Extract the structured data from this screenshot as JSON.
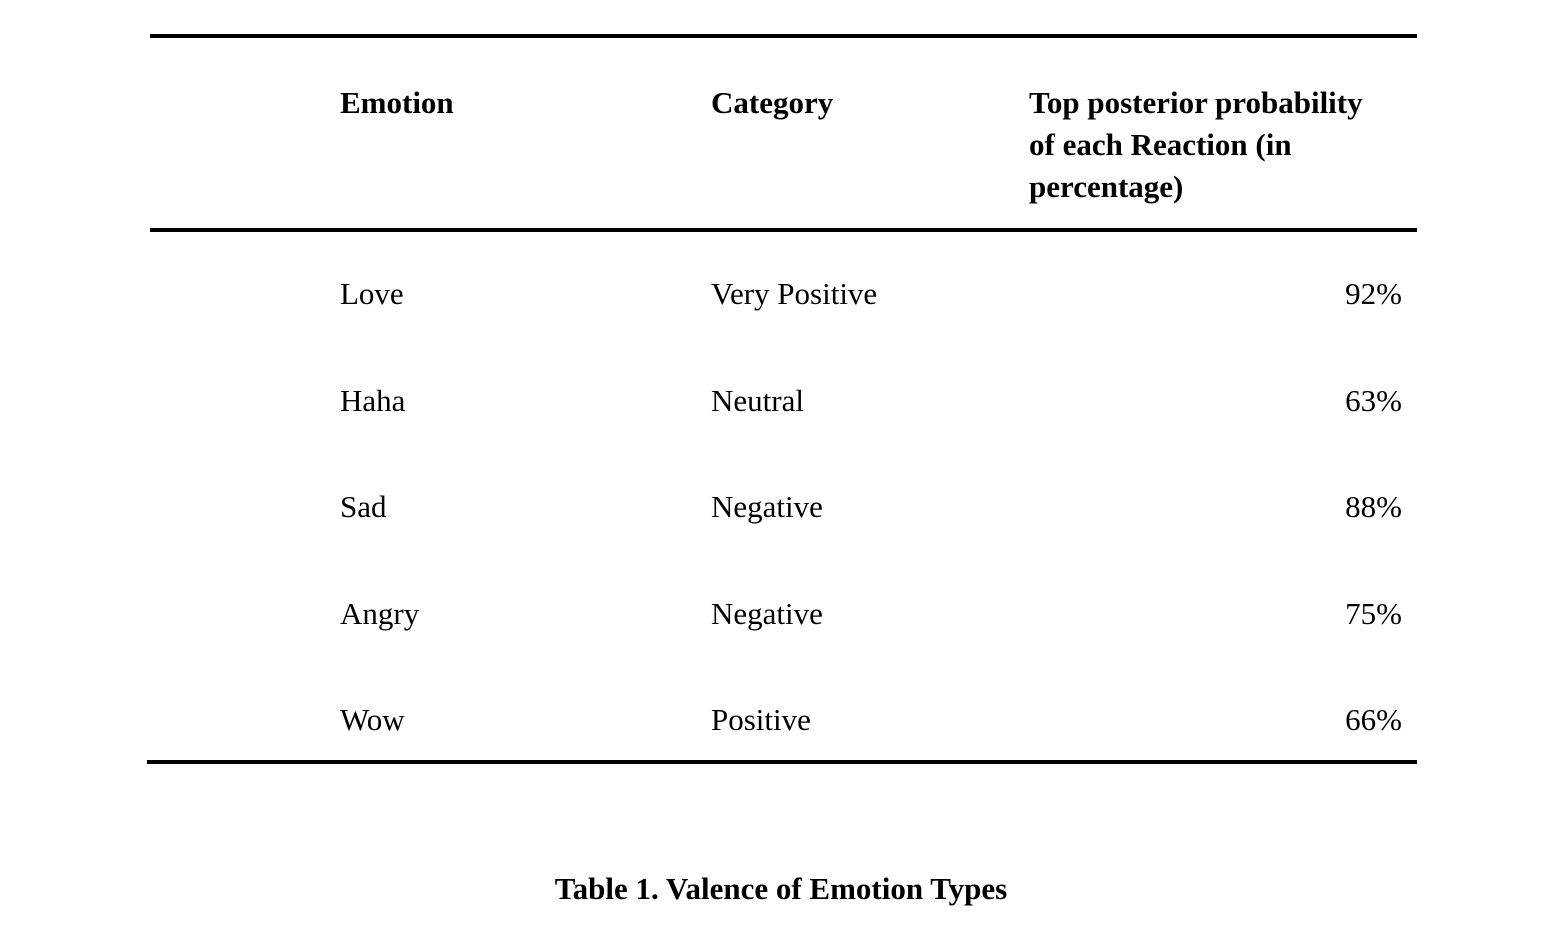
{
  "table": {
    "headers": {
      "emotion": "Emotion",
      "category": "Category",
      "probability_line1": "Top posterior probability",
      "probability_line2": "of each Reaction (in",
      "probability_line3": "percentage)"
    },
    "rows": [
      {
        "emotion": "Love",
        "category": "Very Positive",
        "probability": "92%"
      },
      {
        "emotion": "Haha",
        "category": "Neutral",
        "probability": "63%"
      },
      {
        "emotion": "Sad",
        "category": "Negative",
        "probability": "88%"
      },
      {
        "emotion": "Angry",
        "category": "Negative",
        "probability": "75%"
      },
      {
        "emotion": "Wow",
        "category": "Positive",
        "probability": "66%"
      }
    ]
  },
  "caption": "Table 1. Valence of Emotion Types"
}
